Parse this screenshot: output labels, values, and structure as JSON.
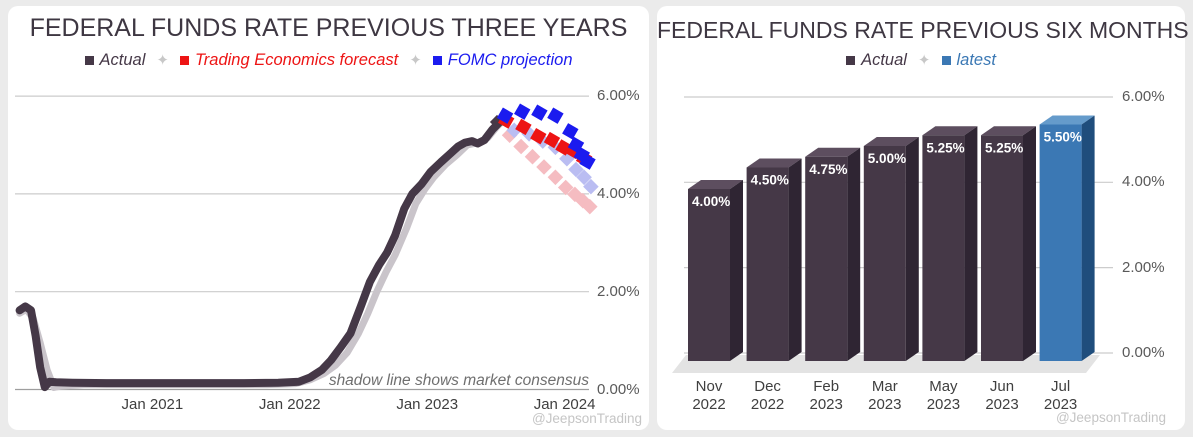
{
  "watermark": "@JeepsonTrading",
  "colors": {
    "background": "#ebebeb",
    "panel": "#ffffff",
    "title_text": "#3e3742",
    "grid": "#cccccc",
    "baseline": "#9e9e9e",
    "axis_text": "#595959",
    "x_axis_text": "#3f3f3f",
    "annotation_text": "#6f6f6f",
    "watermark_text": "#c5c5c5",
    "legend_separator": "#c8c8c8",
    "actual_dark_purple": "#453847",
    "forecast_red": "#ed1414",
    "projection_blue": "#1b1bef",
    "consensus_shadow_gray": "#c9c4ca",
    "shadow_pink": "#f5bcc1",
    "shadow_lavender": "#babdf2",
    "latest_blue": "#3b78b4"
  },
  "chart_data": [
    {
      "type": "line",
      "title": "FEDERAL FUNDS RATE PREVIOUS THREE YEARS",
      "annotation": "shadow line shows market consensus",
      "x_unit": "months since Jan 2020",
      "xlim": [
        0,
        50.5
      ],
      "ylim": [
        0,
        6.3
      ],
      "grid": "horizontal only",
      "legend_position": "top center",
      "legend": [
        {
          "label": "Actual",
          "color": "#453847"
        },
        {
          "label": "Trading Economics forecast",
          "color": "#ed1414"
        },
        {
          "label": "FOMC projection",
          "color": "#1b1bef"
        }
      ],
      "y_ticks": [
        {
          "value": 6,
          "label": "6.00%"
        },
        {
          "value": 4,
          "label": "4.00%"
        },
        {
          "value": 2,
          "label": "2.00%"
        },
        {
          "value": 0,
          "label": "0.00%"
        }
      ],
      "x_ticks": [
        {
          "month": 12,
          "label": "Jan 2021"
        },
        {
          "month": 24,
          "label": "Jan 2022"
        },
        {
          "month": 36,
          "label": "Jan 2023"
        },
        {
          "month": 48,
          "label": "Jan 2024"
        }
      ],
      "series": [
        {
          "name": "market-consensus-shadow",
          "style": "line",
          "color": "#c9c4ca",
          "width": 7,
          "points": [
            [
              0.4,
              1.56
            ],
            [
              1.0,
              1.64
            ],
            [
              1.6,
              1.45
            ],
            [
              2.2,
              0.95
            ],
            [
              2.8,
              0.4
            ],
            [
              3.4,
              0.04
            ],
            [
              4.0,
              0.07
            ],
            [
              6,
              0.1
            ],
            [
              10,
              0.1
            ],
            [
              14,
              0.1
            ],
            [
              18,
              0.1
            ],
            [
              22,
              0.1
            ],
            [
              24.5,
              0.12
            ],
            [
              25.8,
              0.2
            ],
            [
              27,
              0.33
            ],
            [
              28,
              0.5
            ],
            [
              29,
              0.75
            ],
            [
              30,
              1.15
            ],
            [
              30.8,
              1.55
            ],
            [
              31.6,
              2.0
            ],
            [
              32.4,
              2.4
            ],
            [
              33.2,
              2.75
            ],
            [
              34.2,
              3.3
            ],
            [
              35.0,
              3.8
            ],
            [
              35.8,
              4.1
            ],
            [
              36.6,
              4.35
            ],
            [
              37.6,
              4.6
            ],
            [
              38.6,
              4.8
            ],
            [
              39.5,
              5.0
            ],
            [
              40.5,
              5.05
            ],
            [
              41.3,
              5.15
            ],
            [
              42.0,
              5.35
            ],
            [
              42.6,
              5.5
            ]
          ]
        },
        {
          "name": "actual",
          "style": "line",
          "color": "#453847",
          "width": 8,
          "points": [
            [
              0.4,
              1.62
            ],
            [
              0.9,
              1.7
            ],
            [
              1.4,
              1.62
            ],
            [
              1.8,
              1.1
            ],
            [
              2.2,
              0.45
            ],
            [
              2.6,
              0.05
            ],
            [
              3.0,
              0.16
            ],
            [
              3.6,
              0.15
            ],
            [
              5,
              0.14
            ],
            [
              8,
              0.13
            ],
            [
              11,
              0.13
            ],
            [
              14,
              0.13
            ],
            [
              17,
              0.13
            ],
            [
              20,
              0.13
            ],
            [
              23,
              0.14
            ],
            [
              24.8,
              0.16
            ],
            [
              25.8,
              0.25
            ],
            [
              26.8,
              0.4
            ],
            [
              27.6,
              0.6
            ],
            [
              28.4,
              0.85
            ],
            [
              29.3,
              1.15
            ],
            [
              30.2,
              1.7
            ],
            [
              31.0,
              2.2
            ],
            [
              31.8,
              2.55
            ],
            [
              32.5,
              2.8
            ],
            [
              33.2,
              3.15
            ],
            [
              34.0,
              3.7
            ],
            [
              34.7,
              4.0
            ],
            [
              35.5,
              4.2
            ],
            [
              36.3,
              4.45
            ],
            [
              37.2,
              4.65
            ],
            [
              38.0,
              4.82
            ],
            [
              38.7,
              4.97
            ],
            [
              39.3,
              5.05
            ],
            [
              39.9,
              5.08
            ],
            [
              40.4,
              5.03
            ],
            [
              41.0,
              5.1
            ],
            [
              41.7,
              5.32
            ],
            [
              42.3,
              5.46
            ],
            [
              42.6,
              5.5
            ]
          ]
        },
        {
          "name": "actual-end-marker",
          "style": "dots",
          "color": "#453847",
          "size": 10,
          "rotation": 45,
          "points": [
            [
              42.1,
              5.47
            ]
          ]
        },
        {
          "name": "trading-economics-forecast-shadow",
          "style": "dots",
          "color": "#f5bcc1",
          "size": 11,
          "rotation": 45,
          "points": [
            [
              43.2,
              5.2
            ],
            [
              44.2,
              4.97
            ],
            [
              45.2,
              4.76
            ],
            [
              46.2,
              4.55
            ],
            [
              47.2,
              4.34
            ],
            [
              48.1,
              4.13
            ],
            [
              48.9,
              3.99
            ],
            [
              49.6,
              3.86
            ],
            [
              50.2,
              3.74
            ]
          ]
        },
        {
          "name": "fomc-projection-shadow",
          "style": "dots",
          "color": "#babdf2",
          "size": 11,
          "rotation": 45,
          "points": [
            [
              43.6,
              5.3
            ],
            [
              44.9,
              5.23
            ],
            [
              46.1,
              5.08
            ],
            [
              47.2,
              4.95
            ],
            [
              48.2,
              4.72
            ],
            [
              49.0,
              4.5
            ],
            [
              49.7,
              4.34
            ],
            [
              50.3,
              4.15
            ]
          ]
        },
        {
          "name": "trading-economics-forecast",
          "style": "dots",
          "color": "#ed1414",
          "size": 12,
          "rotation": 30,
          "points": [
            [
              42.9,
              5.5
            ],
            [
              44.4,
              5.37
            ],
            [
              45.7,
              5.18
            ],
            [
              46.9,
              5.1
            ],
            [
              47.9,
              4.95
            ],
            [
              48.8,
              4.88
            ],
            [
              49.7,
              4.72
            ]
          ]
        },
        {
          "name": "fomc-projection",
          "style": "dots",
          "color": "#1b1bef",
          "size": 12,
          "rotation": 30,
          "points": [
            [
              42.8,
              5.6
            ],
            [
              44.3,
              5.68
            ],
            [
              45.8,
              5.66
            ],
            [
              47.2,
              5.6
            ],
            [
              48.5,
              5.28
            ],
            [
              49.0,
              5.0
            ],
            [
              49.5,
              4.8
            ],
            [
              50.0,
              4.66
            ]
          ]
        }
      ]
    },
    {
      "type": "bar",
      "title": "FEDERAL FUNDS RATE PREVIOUS SIX MONTHS",
      "ylim": [
        0,
        6.3
      ],
      "grid": "horizontal only",
      "legend_position": "top center",
      "legend": [
        {
          "label": "Actual",
          "color": "#453847"
        },
        {
          "label": "latest",
          "color": "#3b78b4"
        }
      ],
      "y_ticks": [
        {
          "value": 6,
          "label": "6.00%"
        },
        {
          "value": 4,
          "label": "4.00%"
        },
        {
          "value": 2,
          "label": "2.00%"
        },
        {
          "value": 0,
          "label": "0.00%"
        }
      ],
      "categories": [
        [
          "Nov",
          "2022"
        ],
        [
          "Dec",
          "2022"
        ],
        [
          "Feb",
          "2023"
        ],
        [
          "Mar",
          "2023"
        ],
        [
          "May",
          "2023"
        ],
        [
          "Jun",
          "2023"
        ],
        [
          "Jul",
          "2023"
        ]
      ],
      "values": [
        4.0,
        4.5,
        4.75,
        5.0,
        5.25,
        5.25,
        5.5
      ],
      "bar_labels": [
        "4.00%",
        "4.50%",
        "4.75%",
        "5.00%",
        "5.25%",
        "5.25%",
        "5.50%"
      ],
      "highlight_index": 6,
      "bar_style_3d": {
        "actual": {
          "front": "#453847",
          "top": "#5d4e5f",
          "side": "#2f2533"
        },
        "latest": {
          "front": "#3b78b4",
          "top": "#659bcb",
          "side": "#1f4d7c"
        },
        "floor": "#e3e3e3",
        "label_color": "#ffffff"
      }
    }
  ]
}
